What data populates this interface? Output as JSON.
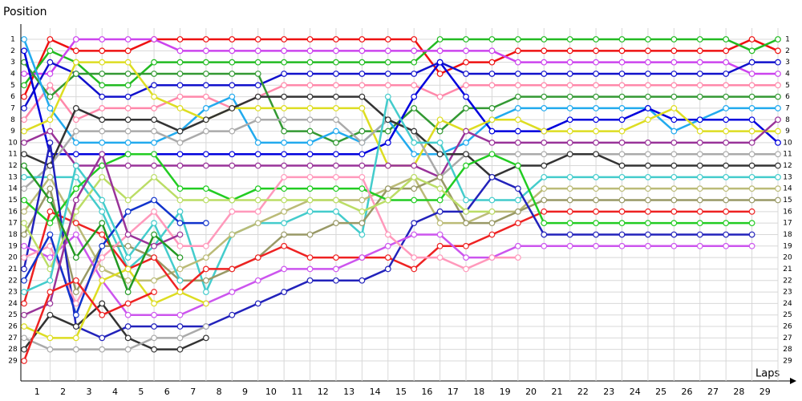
{
  "chart_data": {
    "type": "line",
    "title": "Position",
    "x_label": "Laps",
    "x": [
      0,
      1,
      2,
      3,
      4,
      5,
      6,
      7,
      8,
      9,
      10,
      11,
      12,
      13,
      14,
      15,
      16,
      17,
      18,
      19,
      20,
      21,
      22,
      23,
      24,
      25,
      26,
      27,
      28,
      29
    ],
    "xlim": [
      0,
      29
    ],
    "xticks": [
      1,
      2,
      3,
      4,
      5,
      6,
      7,
      8,
      9,
      10,
      11,
      12,
      13,
      14,
      15,
      16,
      17,
      18,
      19,
      20,
      21,
      22,
      23,
      24,
      25,
      26,
      27,
      28,
      29
    ],
    "ylim": [
      1,
      29
    ],
    "yticks": [
      1,
      2,
      3,
      4,
      5,
      6,
      7,
      8,
      9,
      10,
      11,
      12,
      13,
      14,
      15,
      16,
      17,
      18,
      19,
      20,
      21,
      22,
      23,
      24,
      25,
      26,
      27,
      28,
      29
    ],
    "y_reversed": true,
    "grid": true,
    "series": [
      {
        "color": "#ee1111",
        "values": [
          6,
          1,
          2,
          2,
          2,
          1,
          1,
          1,
          1,
          1,
          1,
          1,
          1,
          1,
          1,
          1,
          4,
          3,
          3,
          2,
          2,
          2,
          2,
          2,
          2,
          2,
          2,
          2,
          1,
          2
        ]
      },
      {
        "color": "#22bb22",
        "values": [
          5,
          2,
          3,
          5,
          5,
          3,
          3,
          3,
          3,
          3,
          3,
          3,
          3,
          3,
          3,
          3,
          1,
          1,
          1,
          1,
          1,
          1,
          1,
          1,
          1,
          1,
          1,
          1,
          2,
          1
        ]
      },
      {
        "color": "#cc44ee",
        "values": [
          4,
          4,
          1,
          1,
          1,
          1,
          2,
          2,
          2,
          2,
          2,
          2,
          2,
          2,
          2,
          2,
          2,
          2,
          2,
          3,
          3,
          3,
          3,
          3,
          3,
          3,
          3,
          3,
          4,
          4
        ]
      },
      {
        "color": "#1111cc",
        "values": [
          7,
          3,
          4,
          6,
          6,
          5,
          5,
          5,
          5,
          5,
          4,
          4,
          4,
          4,
          4,
          4,
          3,
          4,
          4,
          4,
          4,
          4,
          4,
          4,
          4,
          4,
          4,
          4,
          3,
          3
        ]
      },
      {
        "color": "#ff88aa",
        "values": [
          8,
          5,
          8,
          7,
          7,
          7,
          6,
          6,
          7,
          6,
          5,
          5,
          5,
          5,
          5,
          5,
          6,
          5,
          5,
          5,
          5,
          5,
          5,
          5,
          5,
          5,
          5,
          5,
          5,
          5
        ]
      },
      {
        "color": "#339933",
        "values": [
          3,
          6,
          4,
          4,
          4,
          4,
          4,
          4,
          4,
          4,
          9,
          9,
          10,
          9,
          9,
          7,
          9,
          7,
          7,
          6,
          6,
          6,
          6,
          6,
          6,
          6,
          6,
          6,
          6,
          6
        ]
      },
      {
        "color": "#22aaee",
        "values": [
          1,
          7,
          10,
          10,
          10,
          10,
          9,
          7,
          6,
          10,
          10,
          10,
          9,
          10,
          8,
          11,
          11,
          10,
          8,
          7,
          7,
          7,
          7,
          7,
          7,
          9,
          8,
          7,
          7,
          7
        ]
      },
      {
        "color": "#0000dd",
        "values": [
          2,
          11,
          11,
          11,
          11,
          11,
          11,
          11,
          11,
          11,
          11,
          11,
          11,
          11,
          10,
          6,
          3,
          6,
          9,
          9,
          9,
          8,
          8,
          8,
          7,
          8,
          8,
          8,
          8,
          10
        ]
      },
      {
        "color": "#dddd22",
        "values": [
          9,
          8,
          3,
          3,
          3,
          6,
          7,
          8,
          7,
          7,
          7,
          7,
          7,
          7,
          12,
          12,
          8,
          9,
          8,
          8,
          9,
          9,
          9,
          9,
          8,
          7,
          9,
          9,
          9,
          9
        ]
      },
      {
        "color": "#993399",
        "values": [
          10,
          9,
          12,
          12,
          12,
          12,
          12,
          12,
          12,
          12,
          12,
          12,
          12,
          12,
          12,
          12,
          13,
          9,
          10,
          10,
          10,
          10,
          10,
          10,
          10,
          10,
          10,
          10,
          10,
          8
        ]
      },
      {
        "color": "#aaaaaa",
        "values": [
          14,
          12,
          9,
          9,
          9,
          9,
          10,
          9,
          9,
          8,
          8,
          8,
          8,
          10,
          8,
          9,
          13,
          11,
          11,
          11,
          11,
          11,
          11,
          11,
          11,
          11,
          11,
          11,
          11,
          11
        ]
      },
      {
        "color": "#333333",
        "values": [
          11,
          12,
          7,
          8,
          8,
          8,
          9,
          8,
          7,
          6,
          6,
          6,
          6,
          6,
          8,
          9,
          11,
          11,
          13,
          12,
          12,
          11,
          11,
          12,
          12,
          12,
          12,
          12,
          12,
          12
        ]
      },
      {
        "color": "#44cccc",
        "values": [
          13,
          13,
          13,
          16,
          21,
          19,
          16,
          23,
          18,
          17,
          17,
          16,
          16,
          18,
          6,
          10,
          10,
          15,
          15,
          15,
          13,
          13,
          13,
          13,
          13,
          13,
          13,
          13,
          13,
          13
        ]
      },
      {
        "color": "#bbbb77",
        "values": [
          16,
          13,
          17,
          21,
          22,
          22,
          21,
          20,
          18,
          17,
          16,
          15,
          15,
          15,
          14,
          13,
          17,
          17,
          16,
          16,
          14,
          14,
          14,
          14,
          14,
          14,
          14,
          14,
          14,
          14
        ]
      },
      {
        "color": "#999966",
        "values": [
          18,
          14,
          23,
          19,
          19,
          20,
          22,
          22,
          21,
          20,
          18,
          18,
          17,
          17,
          14,
          14,
          13,
          17,
          17,
          16,
          15,
          15,
          15,
          15,
          15,
          15,
          15,
          15,
          15,
          15
        ]
      },
      {
        "color": "#ee2222",
        "values": [
          24,
          16,
          17,
          18,
          21,
          20,
          23,
          21,
          21,
          20,
          19,
          20,
          20,
          20,
          20,
          21,
          19,
          19,
          18,
          17,
          16,
          16,
          16,
          16,
          16,
          16,
          16,
          16,
          16,
          null
        ]
      },
      {
        "color": "#22cc22",
        "values": [
          15,
          17,
          14,
          12,
          11,
          11,
          14,
          14,
          15,
          14,
          14,
          14,
          14,
          14,
          15,
          15,
          15,
          12,
          11,
          12,
          17,
          17,
          17,
          17,
          17,
          17,
          17,
          17,
          17,
          null
        ]
      },
      {
        "color": "#2222bb",
        "values": [
          21,
          10,
          26,
          27,
          26,
          26,
          26,
          26,
          25,
          24,
          23,
          22,
          22,
          22,
          21,
          17,
          16,
          16,
          13,
          14,
          18,
          18,
          18,
          18,
          18,
          18,
          18,
          18,
          18,
          null
        ]
      },
      {
        "color": "#cc55ee",
        "values": [
          19,
          20,
          18,
          22,
          25,
          25,
          25,
          24,
          23,
          22,
          21,
          21,
          21,
          20,
          19,
          18,
          18,
          20,
          20,
          19,
          19,
          19,
          19,
          19,
          19,
          19,
          19,
          19,
          19,
          null
        ]
      },
      {
        "color": "#ff99bb",
        "values": [
          20,
          19,
          24,
          20,
          18,
          16,
          19,
          19,
          16,
          16,
          13,
          13,
          13,
          13,
          18,
          20,
          20,
          21,
          20,
          20,
          null,
          null,
          null,
          null,
          null,
          null,
          null,
          null,
          null,
          null
        ]
      },
      {
        "color": "#bbdd66",
        "values": [
          17,
          21,
          16,
          13,
          15,
          13,
          15,
          15,
          15,
          15,
          15,
          15,
          15,
          16,
          15,
          13,
          14,
          16,
          16,
          null,
          null,
          null,
          null,
          null,
          null,
          null,
          null,
          null,
          null,
          null
        ]
      },
      {
        "color": "#1133cc",
        "values": [
          22,
          18,
          25,
          19,
          16,
          15,
          17,
          17,
          null,
          null,
          null,
          null,
          null,
          null,
          null,
          null,
          null,
          null,
          null,
          null,
          null,
          null,
          null,
          null,
          null,
          null,
          null,
          null,
          null,
          null
        ]
      },
      {
        "color": "#333333",
        "values": [
          28,
          25,
          26,
          24,
          27,
          28,
          28,
          27,
          null,
          null,
          null,
          null,
          null,
          null,
          null,
          null,
          null,
          null,
          null,
          null,
          null,
          null,
          null,
          null,
          null,
          null,
          null,
          null,
          null,
          null
        ]
      },
      {
        "color": "#aaaaaa",
        "values": [
          27,
          28,
          28,
          28,
          28,
          27,
          27,
          26,
          null,
          null,
          null,
          null,
          null,
          null,
          null,
          null,
          null,
          null,
          null,
          null,
          null,
          null,
          null,
          null,
          null,
          null,
          null,
          null,
          null,
          null
        ]
      },
      {
        "color": "#dddd22",
        "values": [
          26,
          27,
          27,
          22,
          21,
          24,
          23,
          24,
          null,
          null,
          null,
          null,
          null,
          null,
          null,
          null,
          null,
          null,
          null,
          null,
          null,
          null,
          null,
          null,
          null,
          null,
          null,
          null,
          null,
          null
        ]
      },
      {
        "color": "#44cccc",
        "values": [
          23,
          22,
          12,
          15,
          20,
          17,
          22,
          null,
          null,
          null,
          null,
          null,
          null,
          null,
          null,
          null,
          null,
          null,
          null,
          null,
          null,
          null,
          null,
          null,
          null,
          null,
          null,
          null,
          null,
          null
        ]
      },
      {
        "color": "#993399",
        "values": [
          25,
          24,
          15,
          11,
          18,
          19,
          18,
          null,
          null,
          null,
          null,
          null,
          null,
          null,
          null,
          null,
          null,
          null,
          null,
          null,
          null,
          null,
          null,
          null,
          null,
          null,
          null,
          null,
          null,
          null
        ]
      },
      {
        "color": "#229922",
        "values": [
          12,
          15,
          20,
          17,
          23,
          18,
          20,
          null,
          null,
          null,
          null,
          null,
          null,
          null,
          null,
          null,
          null,
          null,
          null,
          null,
          null,
          null,
          null,
          null,
          null,
          null,
          null,
          null,
          null,
          null
        ]
      },
      {
        "color": "#ee2222",
        "values": [
          29,
          23,
          22,
          25,
          24,
          23,
          null,
          null,
          null,
          null,
          null,
          null,
          null,
          null,
          null,
          null,
          null,
          null,
          null,
          null,
          null,
          null,
          null,
          null,
          null,
          null,
          null,
          null,
          null,
          null
        ]
      }
    ]
  }
}
